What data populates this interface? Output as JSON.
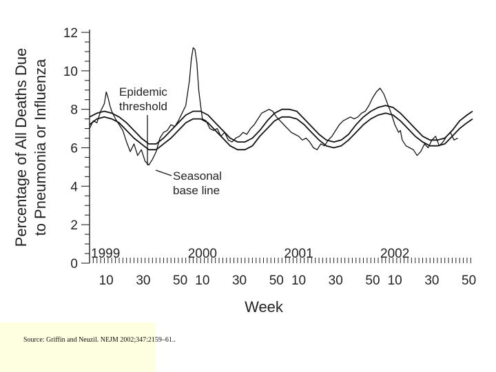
{
  "chart_data": {
    "type": "line",
    "ylabel_lines": [
      "Percentage of All Deaths Due",
      "to Pneumonia or Influenza"
    ],
    "xlabel": "Week",
    "ylim": [
      0,
      12
    ],
    "y_ticks": [
      0,
      2,
      4,
      6,
      8,
      10,
      12
    ],
    "x_range_weeks": [
      1,
      208
    ],
    "x_tick_labels": [
      "10",
      "30",
      "50",
      "10",
      "30",
      "50",
      "10",
      "30",
      "50",
      "10",
      "30",
      "50"
    ],
    "x_tick_weeks": [
      10,
      30,
      50,
      62,
      82,
      102,
      114,
      134,
      154,
      166,
      186,
      206
    ],
    "year_labels": [
      "1999",
      "2000",
      "2001",
      "2002"
    ],
    "year_label_weeks": [
      3,
      62,
      114,
      166
    ],
    "annotations": [
      "Epidemic",
      "threshold",
      "Seasonal",
      "base line"
    ],
    "series": [
      {
        "week": [
          1,
          3,
          5,
          7,
          9,
          10,
          11,
          12,
          13,
          15,
          17,
          19,
          21,
          23,
          25,
          27,
          29,
          31,
          33,
          35,
          37,
          39,
          41,
          43,
          45,
          47,
          49,
          51,
          53,
          55,
          56,
          57,
          58,
          59,
          60,
          61,
          62,
          64,
          66,
          68,
          70,
          72,
          74,
          76,
          78,
          80,
          82,
          84,
          86,
          88,
          90,
          92,
          94,
          96,
          98,
          100,
          102,
          104,
          106,
          108,
          110,
          112,
          114,
          116,
          118,
          120,
          122,
          124,
          126,
          128,
          130,
          132,
          134,
          136,
          138,
          140,
          142,
          144,
          146,
          148,
          150,
          152,
          154,
          156,
          158,
          160,
          162,
          164,
          166,
          167,
          168,
          169,
          170,
          172,
          174,
          176,
          178,
          180,
          182,
          184,
          186,
          188,
          190,
          192,
          194,
          196,
          198,
          200,
          202,
          204,
          206,
          208
        ],
        "values": [
          7.0,
          7.4,
          7.3,
          7.9,
          8.3,
          8.9,
          8.6,
          8.2,
          7.9,
          7.5,
          7.2,
          6.9,
          6.3,
          5.8,
          6.2,
          5.6,
          5.9,
          5.3,
          5.1,
          5.4,
          5.8,
          6.5,
          6.8,
          6.9,
          7.2,
          7.1,
          7.4,
          7.8,
          8.2,
          9.5,
          10.6,
          11.2,
          11.1,
          10.4,
          9.0,
          8.2,
          7.5,
          7.4,
          7.0,
          6.9,
          7.0,
          6.6,
          6.8,
          6.4,
          6.3,
          6.5,
          6.6,
          6.8,
          6.7,
          7.0,
          7.2,
          7.5,
          7.8,
          7.9,
          8.0,
          7.9,
          7.6,
          7.4,
          7.2,
          7.0,
          6.8,
          6.7,
          6.6,
          6.4,
          6.5,
          6.3,
          6.0,
          5.9,
          6.2,
          6.1,
          6.4,
          6.6,
          6.9,
          7.2,
          7.4,
          7.5,
          7.6,
          7.5,
          7.6,
          7.8,
          7.9,
          8.2,
          8.6,
          8.9,
          9.1,
          8.8,
          8.3,
          7.8,
          7.2,
          7.0,
          6.8,
          6.9,
          6.4,
          6.1,
          6.0,
          5.9,
          5.6,
          5.8,
          6.2,
          6.0,
          6.4,
          6.6,
          6.1,
          6.3,
          6.6,
          6.8,
          6.4,
          6.5
        ]
      },
      {
        "name": "Epidemic threshold",
        "week": [
          1,
          5,
          9,
          13,
          17,
          21,
          25,
          29,
          33,
          37,
          41,
          45,
          49,
          53,
          57,
          61,
          65,
          69,
          73,
          77,
          81,
          85,
          89,
          93,
          97,
          101,
          105,
          109,
          113,
          117,
          121,
          125,
          129,
          133,
          137,
          141,
          145,
          149,
          153,
          157,
          161,
          165,
          169,
          173,
          177,
          181,
          185,
          189,
          193,
          197,
          201,
          205,
          208
        ],
        "values": [
          7.6,
          7.8,
          7.9,
          7.8,
          7.6,
          7.3,
          6.9,
          6.5,
          6.2,
          6.2,
          6.5,
          6.9,
          7.3,
          7.7,
          7.9,
          7.9,
          7.7,
          7.3,
          6.9,
          6.5,
          6.3,
          6.3,
          6.5,
          6.9,
          7.4,
          7.8,
          8.0,
          8.0,
          7.9,
          7.5,
          7.1,
          6.7,
          6.4,
          6.3,
          6.4,
          6.7,
          7.2,
          7.6,
          7.9,
          8.1,
          8.2,
          8.1,
          7.8,
          7.4,
          7.0,
          6.6,
          6.4,
          6.4,
          6.5,
          6.9,
          7.4,
          7.7,
          7.9
        ]
      },
      {
        "name": "Seasonal base line",
        "week": [
          1,
          5,
          9,
          13,
          17,
          21,
          25,
          29,
          33,
          37,
          41,
          45,
          49,
          53,
          57,
          61,
          65,
          69,
          73,
          77,
          81,
          85,
          89,
          93,
          97,
          101,
          105,
          109,
          113,
          117,
          121,
          125,
          129,
          133,
          137,
          141,
          145,
          149,
          153,
          157,
          161,
          165,
          169,
          173,
          177,
          181,
          185,
          189,
          193,
          197,
          201,
          205,
          208
        ],
        "values": [
          7.2,
          7.5,
          7.6,
          7.5,
          7.3,
          6.9,
          6.5,
          6.2,
          5.9,
          5.9,
          6.2,
          6.5,
          6.9,
          7.3,
          7.5,
          7.5,
          7.3,
          6.9,
          6.5,
          6.1,
          5.9,
          5.9,
          6.1,
          6.6,
          7.0,
          7.4,
          7.6,
          7.6,
          7.5,
          7.2,
          6.8,
          6.4,
          6.1,
          6.0,
          6.1,
          6.4,
          6.8,
          7.2,
          7.5,
          7.7,
          7.8,
          7.7,
          7.4,
          7.0,
          6.6,
          6.3,
          6.1,
          6.1,
          6.2,
          6.6,
          7.0,
          7.3,
          7.5
        ]
      }
    ]
  },
  "source_text": "Source: Griffin and Neuzil. NEJM 2002;347:2159–61.."
}
